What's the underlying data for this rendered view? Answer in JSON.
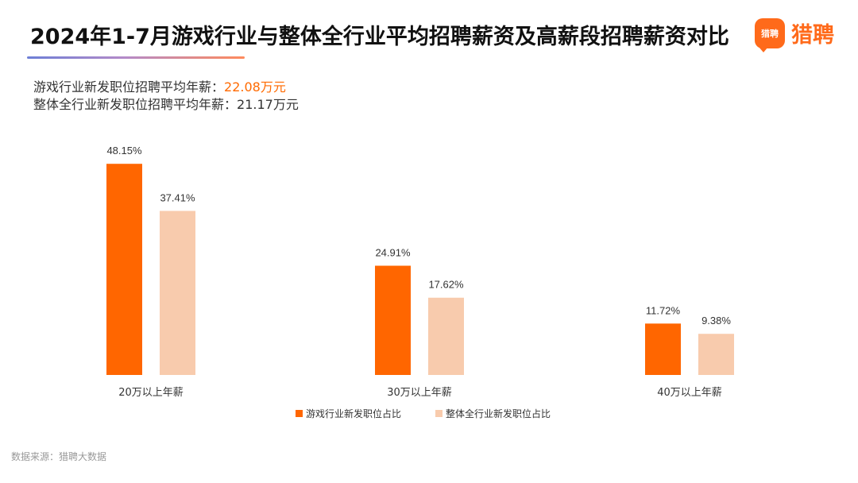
{
  "header": {
    "title": "2024年1-7月游戏行业与整体全行业平均招聘薪资及高薪段招聘薪资对比",
    "logo_badge": "猎聘",
    "logo_text": "猎聘"
  },
  "summary": {
    "line1_label": "游戏行业新发职位招聘平均年薪：",
    "line1_value": "22.08万元",
    "line2_label": "整体全行业新发职位招聘平均年薪：",
    "line2_value": "21.17万元"
  },
  "source": "数据来源：猎聘大数据",
  "colors": {
    "game": "#ff6600",
    "all": "#f8cbad",
    "highlight": "#ff6a00"
  },
  "chart_data": {
    "type": "bar",
    "title": "2024年1-7月游戏行业与整体全行业平均招聘薪资及高薪段招聘薪资对比",
    "categories": [
      "20万以上年薪",
      "30万以上年薪",
      "40万以上年薪"
    ],
    "series": [
      {
        "name": "游戏行业新发职位占比",
        "values": [
          48.15,
          24.91,
          11.72
        ],
        "labels": [
          "48.15%",
          "24.91%",
          "11.72%"
        ]
      },
      {
        "name": "整体全行业新发职位占比",
        "values": [
          37.41,
          17.62,
          9.38
        ],
        "labels": [
          "37.41%",
          "17.62%",
          "9.38%"
        ]
      }
    ],
    "ylim": [
      0,
      50
    ],
    "grid": false,
    "legend": "bottom-center"
  }
}
